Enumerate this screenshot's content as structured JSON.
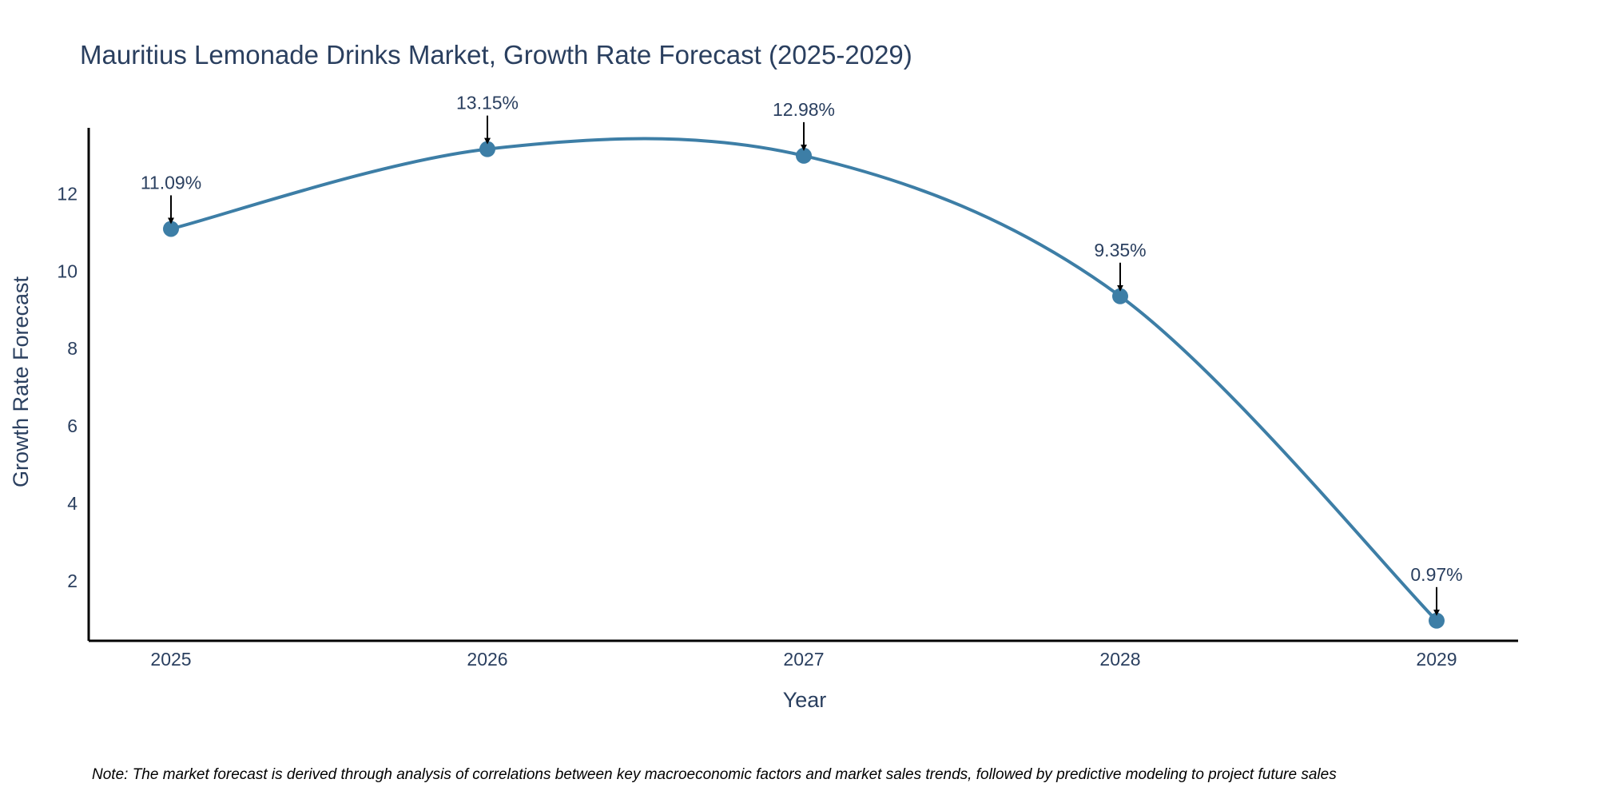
{
  "chart_data": {
    "type": "line",
    "title": "Mauritius Lemonade Drinks Market, Growth Rate Forecast (2025-2029)",
    "xlabel": "Year",
    "ylabel": "Growth Rate Forecast",
    "categories": [
      "2025",
      "2026",
      "2027",
      "2028",
      "2029"
    ],
    "values": [
      11.09,
      13.15,
      12.98,
      9.35,
      0.97
    ],
    "data_labels": [
      "11.09%",
      "13.15%",
      "12.98%",
      "9.35%",
      "0.97%"
    ],
    "y_ticks": [
      2,
      4,
      6,
      8,
      10,
      12
    ],
    "ylim": [
      0.45,
      13.7
    ],
    "grid": false,
    "line_shape": "spline",
    "line_color": "#3d7ea6",
    "marker_color": "#3d7ea6",
    "annotation_arrow_color": "#000000"
  },
  "note": "Note: The market forecast is derived through analysis of correlations between key macroeconomic factors and market sales trends, followed by predictive modeling to project future sales"
}
